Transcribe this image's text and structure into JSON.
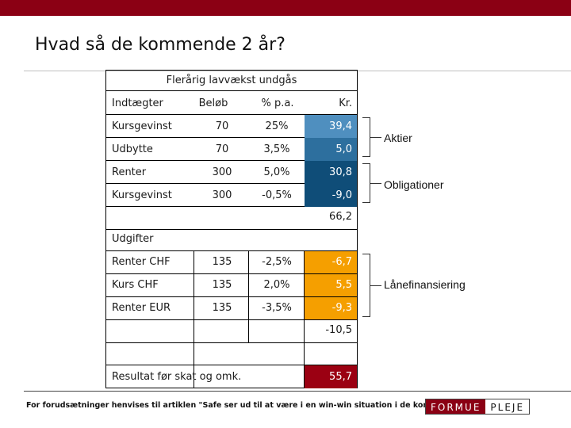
{
  "title": "Hvad så de kommende 2 år?",
  "sheet": {
    "title": "Flerårig lavvækst undgås",
    "headers": {
      "label": "Indtægter",
      "amount": "Beløb",
      "pct": "% p.a.",
      "kr": "Kr."
    },
    "income_rows": [
      {
        "label": "Kursgevinst",
        "amount": "70",
        "pct": "25%",
        "kr": "39,4"
      },
      {
        "label": "Udbytte",
        "amount": "70",
        "pct": "3,5%",
        "kr": "5,0"
      },
      {
        "label": "Renter",
        "amount": "300",
        "pct": "5,0%",
        "kr": "30,8"
      },
      {
        "label": "Kursgevinst",
        "amount": "300",
        "pct": "-0,5%",
        "kr": "-9,0"
      }
    ],
    "income_total": "66,2",
    "expenses_header": "Udgifter",
    "expense_rows": [
      {
        "label": "Renter CHF",
        "amount": "135",
        "pct": "-2,5%",
        "kr": "-6,7"
      },
      {
        "label": "Kurs CHF",
        "amount": "135",
        "pct": "2,0%",
        "kr": "5,5"
      },
      {
        "label": "Renter EUR",
        "amount": "135",
        "pct": "-3,5%",
        "kr": "-9,3"
      }
    ],
    "expense_total": "-10,5",
    "result_label": "Resultat før skat og omk.",
    "result_value": "55,7"
  },
  "annotations": {
    "aktier": "Aktier",
    "obligationer": "Obligationer",
    "laanefinansiering": "Lånefinansiering"
  },
  "footnote": "For forudsætninger henvises til artiklen \"Safe ser ud til at være i en win-win situation i de kommende år\".",
  "logo": {
    "part1": "FORMUE",
    "part2": "PLEJE"
  },
  "colors": {
    "brand": "#8b0014",
    "aktier_light": "#4f8fbf",
    "aktier": "#2d6f9e",
    "obligationer": "#0f4d78",
    "laan": "#f59f00",
    "result": "#9b0012"
  }
}
